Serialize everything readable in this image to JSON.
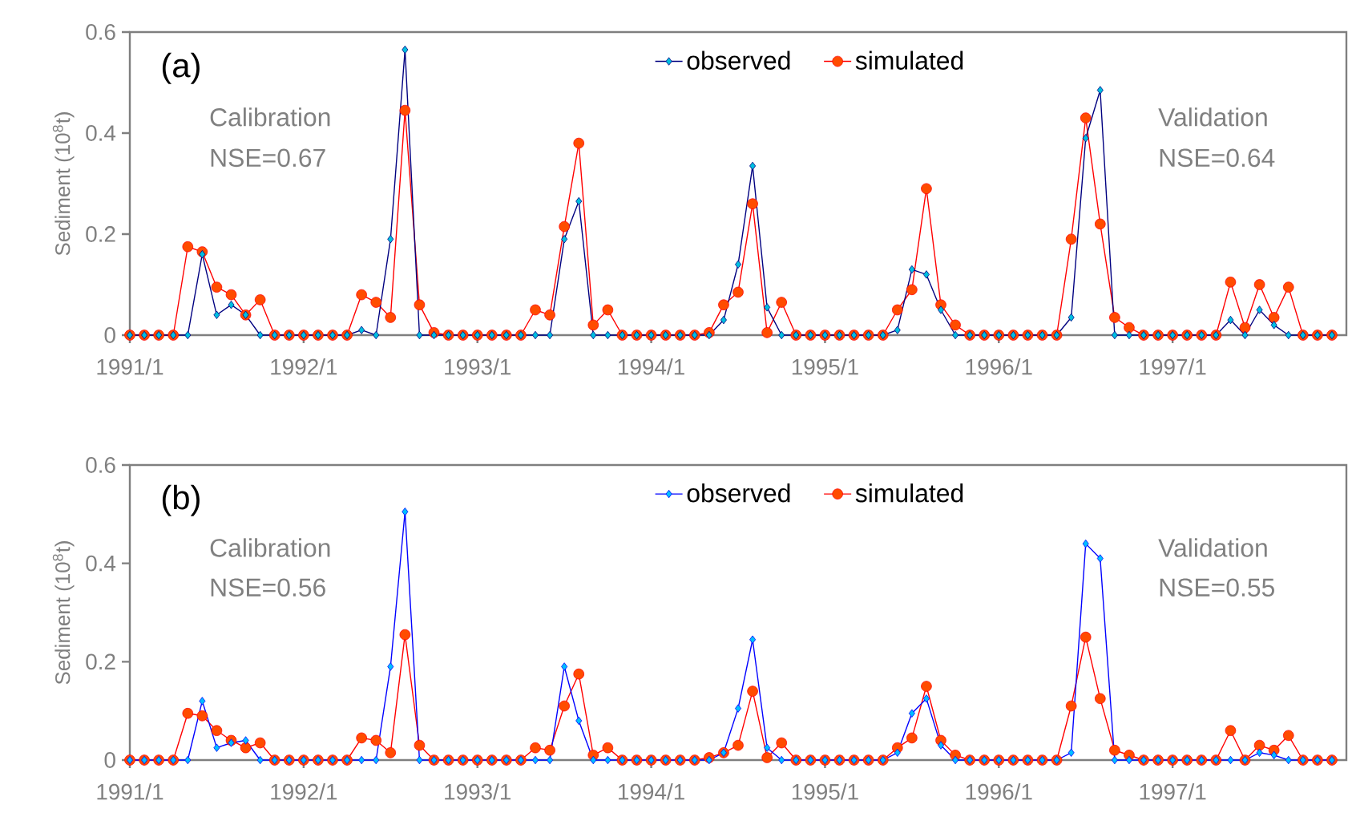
{
  "chart_data": [
    {
      "type": "line",
      "ylabel": "Sediment (10$^{8}$t)",
      "legend": "top",
      "ylim": [
        0,
        0.6
      ],
      "yticks": [
        0,
        0.2,
        0.4,
        0.6
      ],
      "xlim": [
        "1991-01",
        "1998-01"
      ],
      "xticks": [
        {
          "value": "1991-01",
          "label": "1991/1"
        },
        {
          "value": "1992-01",
          "label": "1992/1"
        },
        {
          "value": "1993-01",
          "label": "1993/1"
        },
        {
          "value": "1994-01",
          "label": "1994/1"
        },
        {
          "value": "1995-01",
          "label": "1995/1"
        },
        {
          "value": "1996-01",
          "label": "1996/1"
        },
        {
          "value": "1997-01",
          "label": "1997/1"
        }
      ],
      "annotations": [
        "(a)",
        "Calibration",
        "NSE=0.67",
        "Validation",
        "NSE=0.64"
      ],
      "x": [
        "1991-01",
        "1991-02",
        "1991-03",
        "1991-04",
        "1991-05",
        "1991-06",
        "1991-07",
        "1991-08",
        "1991-09",
        "1991-10",
        "1991-11",
        "1991-12",
        "1992-01",
        "1992-02",
        "1992-03",
        "1992-04",
        "1992-05",
        "1992-06",
        "1992-07",
        "1992-08",
        "1992-09",
        "1992-10",
        "1992-11",
        "1992-12",
        "1993-01",
        "1993-02",
        "1993-03",
        "1993-04",
        "1993-05",
        "1993-06",
        "1993-07",
        "1993-08",
        "1993-09",
        "1993-10",
        "1993-11",
        "1993-12",
        "1994-01",
        "1994-02",
        "1994-03",
        "1994-04",
        "1994-05",
        "1994-06",
        "1994-07",
        "1994-08",
        "1994-09",
        "1994-10",
        "1994-11",
        "1994-12",
        "1995-01",
        "1995-02",
        "1995-03",
        "1995-04",
        "1995-05",
        "1995-06",
        "1995-07",
        "1995-08",
        "1995-09",
        "1995-10",
        "1995-11",
        "1995-12",
        "1996-01",
        "1996-02",
        "1996-03",
        "1996-04",
        "1996-05",
        "1996-06",
        "1996-07",
        "1996-08",
        "1996-09",
        "1996-10",
        "1996-11",
        "1996-12",
        "1997-01",
        "1997-02",
        "1997-03",
        "1997-04",
        "1997-05",
        "1997-06",
        "1997-07",
        "1997-08",
        "1997-09",
        "1997-10",
        "1997-11",
        "1997-12"
      ],
      "series": [
        {
          "name": "observed",
          "color": "#000080",
          "marker": "diamond",
          "values": [
            0,
            0,
            0,
            0,
            0,
            0.16,
            0.04,
            0.06,
            0.04,
            0,
            0,
            0,
            0,
            0,
            0,
            0,
            0.01,
            0,
            0.19,
            0.565,
            0,
            0,
            0,
            0,
            0,
            0,
            0,
            0,
            0,
            0,
            0.19,
            0.265,
            0,
            0,
            0,
            0,
            0,
            0,
            0,
            0,
            0,
            0.03,
            0.14,
            0.335,
            0.055,
            0,
            0,
            0,
            0,
            0,
            0,
            0,
            0,
            0.01,
            0.13,
            0.12,
            0.05,
            0,
            0,
            0,
            0,
            0,
            0,
            0,
            0,
            0.035,
            0.39,
            0.485,
            0,
            0,
            0,
            0,
            0,
            0,
            0,
            0,
            0.03,
            0,
            0.05,
            0.02,
            0,
            0,
            0,
            0
          ]
        },
        {
          "name": "simulated",
          "color": "#ff0000",
          "marker": "circle",
          "values": [
            0,
            0,
            0,
            0,
            0.175,
            0.165,
            0.095,
            0.08,
            0.04,
            0.07,
            0,
            0,
            0,
            0,
            0,
            0,
            0.08,
            0.065,
            0.035,
            0.445,
            0.06,
            0.005,
            0,
            0,
            0,
            0,
            0,
            0,
            0.05,
            0.04,
            0.215,
            0.38,
            0.02,
            0.05,
            0,
            0,
            0,
            0,
            0,
            0,
            0.005,
            0.06,
            0.085,
            0.26,
            0.005,
            0.065,
            0,
            0,
            0,
            0,
            0,
            0,
            0,
            0.05,
            0.09,
            0.29,
            0.06,
            0.02,
            0,
            0,
            0,
            0,
            0,
            0,
            0,
            0.19,
            0.43,
            0.22,
            0.035,
            0.015,
            0,
            0,
            0,
            0,
            0,
            0,
            0.105,
            0.015,
            0.1,
            0.035,
            0.095,
            0,
            0,
            0
          ]
        }
      ]
    },
    {
      "type": "line",
      "ylabel": "Sediment (10$^{8}$t)",
      "legend": "top",
      "ylim": [
        0,
        0.6
      ],
      "yticks": [
        0,
        0.2,
        0.4,
        0.6
      ],
      "xlim": [
        "1991-01",
        "1998-01"
      ],
      "xticks": [
        {
          "value": "1991-01",
          "label": "1991/1"
        },
        {
          "value": "1992-01",
          "label": "1992/1"
        },
        {
          "value": "1993-01",
          "label": "1993/1"
        },
        {
          "value": "1994-01",
          "label": "1994/1"
        },
        {
          "value": "1995-01",
          "label": "1995/1"
        },
        {
          "value": "1996-01",
          "label": "1996/1"
        },
        {
          "value": "1997-01",
          "label": "1997/1"
        }
      ],
      "annotations": [
        "(b)",
        "Calibration",
        "NSE=0.56",
        "Validation",
        "NSE=0.55"
      ],
      "x": [
        "1991-01",
        "1991-02",
        "1991-03",
        "1991-04",
        "1991-05",
        "1991-06",
        "1991-07",
        "1991-08",
        "1991-09",
        "1991-10",
        "1991-11",
        "1991-12",
        "1992-01",
        "1992-02",
        "1992-03",
        "1992-04",
        "1992-05",
        "1992-06",
        "1992-07",
        "1992-08",
        "1992-09",
        "1992-10",
        "1992-11",
        "1992-12",
        "1993-01",
        "1993-02",
        "1993-03",
        "1993-04",
        "1993-05",
        "1993-06",
        "1993-07",
        "1993-08",
        "1993-09",
        "1993-10",
        "1993-11",
        "1993-12",
        "1994-01",
        "1994-02",
        "1994-03",
        "1994-04",
        "1994-05",
        "1994-06",
        "1994-07",
        "1994-08",
        "1994-09",
        "1994-10",
        "1994-11",
        "1994-12",
        "1995-01",
        "1995-02",
        "1995-03",
        "1995-04",
        "1995-05",
        "1995-06",
        "1995-07",
        "1995-08",
        "1995-09",
        "1995-10",
        "1995-11",
        "1995-12",
        "1996-01",
        "1996-02",
        "1996-03",
        "1996-04",
        "1996-05",
        "1996-06",
        "1996-07",
        "1996-08",
        "1996-09",
        "1996-10",
        "1996-11",
        "1996-12",
        "1997-01",
        "1997-02",
        "1997-03",
        "1997-04",
        "1997-05",
        "1997-06",
        "1997-07",
        "1997-08",
        "1997-09",
        "1997-10",
        "1997-11",
        "1997-12"
      ],
      "series": [
        {
          "name": "observed",
          "color": "#0000ff",
          "marker": "diamond",
          "values": [
            0,
            0,
            0,
            0,
            0,
            0.12,
            0.025,
            0.035,
            0.04,
            0,
            0,
            0,
            0,
            0,
            0,
            0,
            0,
            0,
            0.19,
            0.505,
            0,
            0,
            0,
            0,
            0,
            0,
            0,
            0,
            0,
            0,
            0.19,
            0.08,
            0,
            0,
            0,
            0,
            0,
            0,
            0,
            0,
            0,
            0.015,
            0.105,
            0.245,
            0.025,
            0,
            0,
            0,
            0,
            0,
            0,
            0,
            0,
            0.015,
            0.095,
            0.125,
            0.03,
            0,
            0,
            0,
            0,
            0,
            0,
            0,
            0,
            0.015,
            0.44,
            0.41,
            0,
            0,
            0,
            0,
            0,
            0,
            0,
            0,
            0,
            0,
            0.015,
            0.01,
            0,
            0,
            0,
            0
          ]
        },
        {
          "name": "simulated",
          "color": "#ff0000",
          "marker": "circle",
          "values": [
            0,
            0,
            0,
            0,
            0.095,
            0.09,
            0.06,
            0.04,
            0.025,
            0.035,
            0,
            0,
            0,
            0,
            0,
            0,
            0.045,
            0.04,
            0.015,
            0.255,
            0.03,
            0,
            0,
            0,
            0,
            0,
            0,
            0,
            0.025,
            0.02,
            0.11,
            0.175,
            0.01,
            0.025,
            0,
            0,
            0,
            0,
            0,
            0,
            0.005,
            0.015,
            0.03,
            0.14,
            0.005,
            0.035,
            0,
            0,
            0,
            0,
            0,
            0,
            0,
            0.025,
            0.045,
            0.15,
            0.04,
            0.01,
            0,
            0,
            0,
            0,
            0,
            0,
            0,
            0.11,
            0.25,
            0.125,
            0.02,
            0.01,
            0,
            0,
            0,
            0,
            0,
            0,
            0.06,
            0,
            0.03,
            0.02,
            0.05,
            0,
            0,
            0
          ]
        }
      ]
    }
  ]
}
